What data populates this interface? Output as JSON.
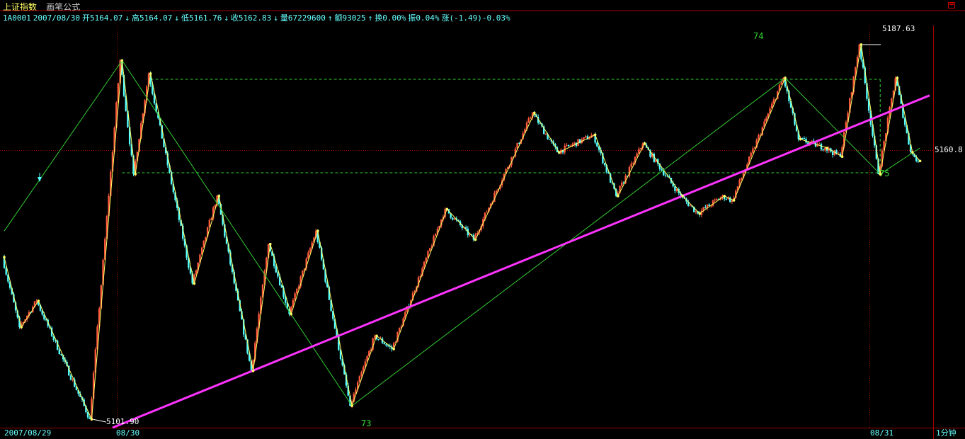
{
  "title": {
    "index_name": "上证指数",
    "formula": "画笔公式"
  },
  "quote": {
    "code": "1A0001",
    "date": "2007/08/30",
    "open": "开5164.07",
    "high": "高5164.07",
    "low": "低5161.76",
    "close": "收5162.83",
    "volume": "量67229600",
    "amount": "额93025",
    "turnover": "换0.00%",
    "amplitude": "振0.04%",
    "change": "涨(-1.49)-0.03%",
    "down_arrow": "↓",
    "up_arrow": "↑"
  },
  "period": "1分钟",
  "colors": {
    "up": "#ff5a3c",
    "down": "#54ffff",
    "pen": "#ffff66",
    "segment": "#33cc33",
    "trend": "#ff33ff",
    "frame": "#a00000",
    "grid": "#33cc33"
  },
  "chart_data": {
    "type": "candlestick",
    "x_axis_labels": [
      "2007/08/29",
      "08/30",
      "08/31"
    ],
    "price_labels": {
      "high": "5187.63",
      "low": "5101.90",
      "right": "5160.8"
    },
    "wave_labels": [
      "73",
      "74",
      "75"
    ],
    "pivots": [
      {
        "i": 0,
        "p": 5139
      },
      {
        "i": 9,
        "p": 5123
      },
      {
        "i": 18,
        "p": 5129
      },
      {
        "i": 46,
        "p": 5102
      },
      {
        "i": 62,
        "p": 5184
      },
      {
        "i": 69,
        "p": 5158
      },
      {
        "i": 77,
        "p": 5181
      },
      {
        "i": 100,
        "p": 5133
      },
      {
        "i": 113,
        "p": 5153
      },
      {
        "i": 131,
        "p": 5113
      },
      {
        "i": 140,
        "p": 5142
      },
      {
        "i": 151,
        "p": 5126
      },
      {
        "i": 165,
        "p": 5145
      },
      {
        "i": 183,
        "p": 5105
      },
      {
        "i": 196,
        "p": 5121
      },
      {
        "i": 205,
        "p": 5118
      },
      {
        "i": 233,
        "p": 5150
      },
      {
        "i": 248,
        "p": 5143
      },
      {
        "i": 279,
        "p": 5172
      },
      {
        "i": 292,
        "p": 5163
      },
      {
        "i": 311,
        "p": 5167
      },
      {
        "i": 323,
        "p": 5153
      },
      {
        "i": 337,
        "p": 5165
      },
      {
        "i": 357,
        "p": 5153
      },
      {
        "i": 366,
        "p": 5149
      },
      {
        "i": 379,
        "p": 5153
      },
      {
        "i": 384,
        "p": 5152
      },
      {
        "i": 411,
        "p": 5180
      },
      {
        "i": 419,
        "p": 5166
      },
      {
        "i": 433,
        "p": 5164
      },
      {
        "i": 441,
        "p": 5162
      },
      {
        "i": 451,
        "p": 5187.63
      },
      {
        "i": 461,
        "p": 5158
      },
      {
        "i": 470,
        "p": 5180
      },
      {
        "i": 478,
        "p": 5163
      },
      {
        "i": 482,
        "p": 5161
      }
    ],
    "pen_pivots": [
      {
        "i": 0,
        "p": 5139
      },
      {
        "i": 9,
        "p": 5123
      },
      {
        "i": 18,
        "p": 5129
      },
      {
        "i": 46,
        "p": 5101.9
      },
      {
        "i": 62,
        "p": 5184
      },
      {
        "i": 69,
        "p": 5158
      },
      {
        "i": 77,
        "p": 5181
      },
      {
        "i": 100,
        "p": 5133
      },
      {
        "i": 113,
        "p": 5153
      },
      {
        "i": 131,
        "p": 5113
      },
      {
        "i": 140,
        "p": 5142
      },
      {
        "i": 151,
        "p": 5126
      },
      {
        "i": 165,
        "p": 5145
      },
      {
        "i": 183,
        "p": 5105
      },
      {
        "i": 196,
        "p": 5121
      },
      {
        "i": 205,
        "p": 5118
      },
      {
        "i": 233,
        "p": 5150
      },
      {
        "i": 248,
        "p": 5143
      },
      {
        "i": 279,
        "p": 5172
      },
      {
        "i": 292,
        "p": 5163
      },
      {
        "i": 311,
        "p": 5167
      },
      {
        "i": 323,
        "p": 5153
      },
      {
        "i": 337,
        "p": 5165
      },
      {
        "i": 357,
        "p": 5153
      },
      {
        "i": 366,
        "p": 5149
      },
      {
        "i": 379,
        "p": 5153
      },
      {
        "i": 384,
        "p": 5152
      },
      {
        "i": 411,
        "p": 5180
      },
      {
        "i": 419,
        "p": 5166
      },
      {
        "i": 433,
        "p": 5164
      },
      {
        "i": 441,
        "p": 5162
      },
      {
        "i": 451,
        "p": 5187.63
      },
      {
        "i": 461,
        "p": 5158
      },
      {
        "i": 470,
        "p": 5180
      },
      {
        "i": 478,
        "p": 5163
      },
      {
        "i": 482,
        "p": 5161
      }
    ],
    "segment_pivots": [
      {
        "i": 0,
        "p": 5145
      },
      {
        "i": 62,
        "p": 5184
      },
      {
        "i": 183,
        "p": 5105
      },
      {
        "i": 411,
        "p": 5180
      },
      {
        "i": 461,
        "p": 5158
      },
      {
        "i": 482,
        "p": 5164
      }
    ],
    "trend_line": [
      {
        "i": 57,
        "p": 5100
      },
      {
        "i": 487,
        "p": 5176
      }
    ],
    "levels": [
      5179.7,
      5158.3
    ],
    "ylim": [
      5100,
      5192
    ],
    "n_bars": 487
  }
}
